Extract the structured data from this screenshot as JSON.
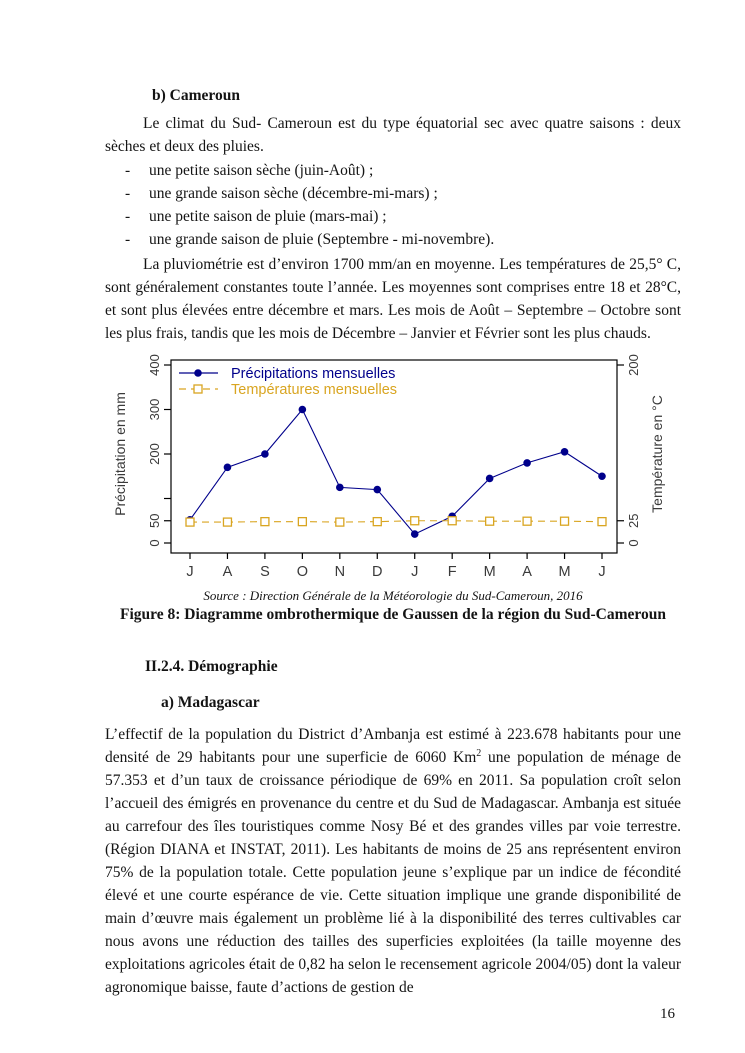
{
  "page": {
    "number": "16"
  },
  "sections": {
    "cameroun_heading": "b)  Cameroun",
    "cameroun_intro": "Le climat du Sud- Cameroun est du type équatorial sec avec quatre saisons : deux sèches et deux des pluies.",
    "bullet": "-",
    "seasons": [
      "une petite saison sèche (juin-Août) ;",
      "une grande saison sèche (décembre-mi-mars) ;",
      "une petite saison de pluie (mars-mai) ;",
      "une grande saison de pluie (Septembre - mi-novembre)."
    ],
    "pluviometrie": "La pluviométrie est d’environ 1700 mm/an en moyenne. Les températures de 25,5° C, sont généralement constantes toute l’année. Les moyennes sont comprises entre 18 et 28°C, et sont plus élevées entre décembre et mars. Les mois de Août – Septembre – Octobre sont les plus frais, tandis que les mois de Décembre – Janvier et Février sont les plus chauds.",
    "figure_source": "Source : Direction Générale de la Météorologie du Sud-Cameroun, 2016",
    "figure_caption": "Figure 8: Diagramme ombrothermique de Gaussen de la région du Sud-Cameroun",
    "demographie_heading": "II.2.4. Démographie",
    "madagascar_heading": "a)  Madagascar",
    "demographie_part1": "L’effectif de la population du District d’Ambanja est estimé à 223.678 habitants pour une densité de 29 habitants pour une superficie de 6060 Km",
    "demographie_sup": "2",
    "demographie_part2": "  une population de ménage de 57.353 et d’un taux de croissance périodique de 69% en 2011. Sa population croît selon l’accueil des émigrés en provenance du centre et du Sud de Madagascar. Ambanja est située au carrefour des îles touristiques comme Nosy Bé et des grandes villes par voie terrestre. (Région DIANA et INSTAT, 2011). Les habitants de moins de 25 ans représentent environ 75% de la population totale. Cette population jeune s’explique par un indice de fécondité élevé et une courte espérance de vie. Cette situation implique une grande disponibilité de main d’œuvre mais également un problème lié à la disponibilité des terres cultivables car nous avons une réduction des tailles des superficies exploitées (la taille moyenne des exploitations agricoles était de 0,82 ha selon le recensement agricole 2004/05) dont la valeur agronomique baisse, faute d’actions de gestion de"
  },
  "chart_data": {
    "type": "line",
    "title": "",
    "categories": [
      "J",
      "A",
      "S",
      "O",
      "N",
      "D",
      "J",
      "F",
      "M",
      "A",
      "M",
      "J"
    ],
    "series": [
      {
        "name": "Précipitations mensuelles",
        "axis": "left",
        "color": "#00008B",
        "marker": "filled-circle",
        "line_style": "solid",
        "values": [
          52,
          170,
          200,
          300,
          125,
          120,
          20,
          60,
          145,
          180,
          205,
          150
        ]
      },
      {
        "name": "Températures mensuelles",
        "axis": "right",
        "color": "#D9A521",
        "marker": "open-square",
        "line_style": "dashed",
        "values": [
          23.5,
          23.5,
          24,
          24,
          23.5,
          24,
          25,
          25,
          24.5,
          24.5,
          24.5,
          24
        ]
      }
    ],
    "xlabel": "",
    "ylabel_left": "Précipitation en mm",
    "ylabel_right": "Température en °C",
    "ylim_left": [
      0,
      400
    ],
    "ylim_right": [
      0,
      200
    ],
    "left_ticks": [
      {
        "v": 0,
        "label": "0"
      },
      {
        "v": 50,
        "label": "50"
      },
      {
        "v": 100,
        "label": ""
      },
      {
        "v": 200,
        "label": "200"
      },
      {
        "v": 300,
        "label": "300"
      },
      {
        "v": 400,
        "label": "400"
      }
    ],
    "right_ticks": [
      {
        "v": 0,
        "label": "0"
      },
      {
        "v": 25,
        "label": "25"
      },
      {
        "v": 200,
        "label": "200"
      }
    ],
    "legend_position": "top-left",
    "grid": false,
    "axis_text_color": "#3a3a3a"
  }
}
